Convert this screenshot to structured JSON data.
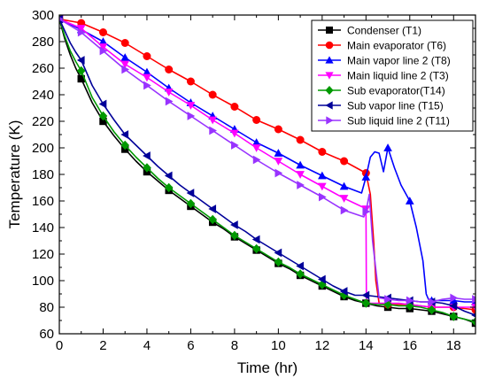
{
  "chart_data": {
    "type": "line",
    "xlabel": "Time (hr)",
    "ylabel": "Temperature (K)",
    "xlim": [
      0,
      19
    ],
    "ylim": [
      60,
      300
    ],
    "xticks": [
      0,
      2,
      4,
      6,
      8,
      10,
      12,
      14,
      16,
      18
    ],
    "yticks": [
      60,
      80,
      100,
      120,
      140,
      160,
      180,
      200,
      220,
      240,
      260,
      280,
      300
    ],
    "grid": false,
    "legend_position": "top-right",
    "series": [
      {
        "name": "Condenser (T1)",
        "color": "#000000",
        "marker": "square",
        "x": [
          0,
          0.25,
          0.5,
          0.75,
          1,
          1.5,
          2,
          2.5,
          3,
          3.5,
          4,
          4.5,
          5,
          5.5,
          6,
          6.5,
          7,
          7.5,
          8,
          8.5,
          9,
          9.5,
          10,
          10.5,
          11,
          11.5,
          12,
          12.5,
          13,
          13.5,
          14,
          14.5,
          15,
          15.5,
          16,
          16.5,
          17,
          17.5,
          18,
          18.5,
          19
        ],
        "y": [
          297,
          282,
          270,
          260,
          252,
          234,
          220,
          209,
          199,
          190,
          182,
          175,
          168,
          162,
          156,
          150,
          144,
          139,
          133,
          128,
          123,
          118,
          113,
          109,
          104,
          100,
          96,
          92,
          88,
          85,
          83,
          81,
          80,
          79,
          79,
          78,
          77,
          75,
          73,
          71,
          68
        ],
        "marker_x": [
          0,
          1,
          2,
          3,
          4,
          5,
          6,
          7,
          8,
          9,
          10,
          11,
          12,
          13,
          14,
          15,
          16,
          17,
          18,
          19
        ],
        "marker_y": [
          297,
          252,
          220,
          199,
          182,
          168,
          156,
          144,
          133,
          123,
          113,
          104,
          96,
          88,
          83,
          80,
          79,
          77,
          73,
          68
        ]
      },
      {
        "name": "Main evaporator (T6)",
        "color": "#ff0000",
        "marker": "circle",
        "x": [
          0,
          1,
          2,
          3,
          4,
          5,
          6,
          7,
          8,
          9,
          10,
          11,
          12,
          13,
          14,
          14.2,
          14.35,
          14.45,
          14.6,
          15,
          15.5,
          16,
          16.5,
          17,
          17.5,
          18,
          18.5,
          19
        ],
        "y": [
          297,
          294,
          287,
          279,
          269,
          259,
          250,
          240,
          231,
          221,
          214,
          206,
          197,
          190,
          181,
          165,
          130,
          100,
          83,
          82,
          82,
          82,
          81,
          80,
          80,
          80,
          79,
          78
        ],
        "marker_x": [
          0,
          1,
          2,
          3,
          4,
          5,
          6,
          7,
          8,
          9,
          10,
          11,
          12,
          13,
          14,
          15,
          16,
          17,
          18,
          19
        ],
        "marker_y": [
          297,
          294,
          287,
          279,
          269,
          259,
          250,
          240,
          231,
          221,
          214,
          206,
          197,
          190,
          181,
          82,
          82,
          80,
          80,
          78
        ]
      },
      {
        "name": "Main vapor line 2 (T8)",
        "color": "#0000ff",
        "marker": "triangle-up",
        "x": [
          0,
          1,
          2,
          3,
          4,
          5,
          6,
          7,
          8,
          9,
          10,
          11,
          12,
          13,
          13.8,
          14,
          14.2,
          14.4,
          14.6,
          14.8,
          15,
          15.3,
          15.6,
          16,
          16.3,
          16.6,
          16.75,
          16.85,
          17,
          17.5,
          18,
          18.5,
          19
        ],
        "y": [
          297,
          289,
          280,
          268,
          257,
          245,
          234,
          224,
          214,
          204,
          196,
          187,
          179,
          171,
          166,
          178,
          193,
          197,
          196,
          182,
          200,
          185,
          172,
          160,
          140,
          115,
          90,
          86,
          85,
          85,
          85,
          84,
          84
        ],
        "marker_x": [
          0,
          1,
          2,
          3,
          4,
          5,
          6,
          7,
          8,
          9,
          10,
          11,
          12,
          13,
          14,
          15,
          16,
          17,
          18,
          19
        ],
        "marker_y": [
          297,
          289,
          280,
          268,
          257,
          245,
          234,
          224,
          214,
          204,
          196,
          187,
          179,
          171,
          178,
          200,
          160,
          85,
          85,
          84
        ]
      },
      {
        "name": "Main liquid line 2 (T3)",
        "color": "#ff00ff",
        "marker": "triangle-down",
        "x": [
          0,
          1,
          2,
          3,
          4,
          5,
          6,
          7,
          8,
          9,
          10,
          11,
          12,
          13,
          13.9,
          14,
          14.02,
          14.2,
          14.5,
          15,
          15.5,
          16,
          16.5,
          17,
          17.5,
          18,
          18.5,
          19
        ],
        "y": [
          297,
          290,
          276,
          263,
          253,
          242,
          232,
          221,
          211,
          200,
          190,
          180,
          171,
          162,
          155,
          154,
          84,
          83,
          83,
          83,
          83,
          82,
          81,
          80,
          80,
          80,
          80,
          80
        ],
        "marker_x": [
          0,
          1,
          2,
          3,
          4,
          5,
          6,
          7,
          8,
          9,
          10,
          11,
          12,
          13,
          14,
          15,
          16,
          17,
          18,
          19
        ],
        "marker_y": [
          297,
          290,
          276,
          263,
          253,
          242,
          232,
          221,
          211,
          200,
          190,
          180,
          171,
          162,
          154,
          83,
          82,
          80,
          80,
          80
        ]
      },
      {
        "name": "Sub evaporator(T14)",
        "color": "#009900",
        "marker": "diamond",
        "x": [
          0,
          0.25,
          0.5,
          0.75,
          1,
          1.5,
          2,
          2.5,
          3,
          3.5,
          4,
          4.5,
          5,
          5.5,
          6,
          6.5,
          7,
          7.5,
          8,
          8.5,
          9,
          9.5,
          10,
          10.5,
          11,
          11.5,
          12,
          12.5,
          13,
          13.5,
          14,
          14.5,
          15,
          15.5,
          16,
          16.5,
          17,
          17.5,
          18,
          18.5,
          19
        ],
        "y": [
          297,
          284,
          273,
          265,
          258,
          238,
          224,
          212,
          202,
          193,
          185,
          177,
          170,
          164,
          158,
          152,
          146,
          140,
          134,
          129,
          124,
          119,
          114,
          110,
          105,
          101,
          97,
          93,
          89,
          86,
          83,
          82,
          82,
          81,
          81,
          80,
          78,
          76,
          73,
          71,
          69
        ],
        "marker_x": [
          0,
          1,
          2,
          3,
          4,
          5,
          6,
          7,
          8,
          9,
          10,
          11,
          12,
          13,
          14,
          15,
          16,
          17,
          18,
          19
        ],
        "marker_y": [
          297,
          258,
          224,
          202,
          185,
          170,
          158,
          146,
          134,
          124,
          114,
          105,
          97,
          89,
          83,
          82,
          81,
          78,
          73,
          69
        ]
      },
      {
        "name": "Sub vapor line (T15)",
        "color": "#000099",
        "marker": "triangle-left",
        "x": [
          0,
          0.25,
          0.5,
          0.75,
          1,
          1.5,
          2,
          2.5,
          3,
          3.5,
          4,
          4.5,
          5,
          5.5,
          6,
          6.5,
          7,
          7.5,
          8,
          8.5,
          9,
          9.5,
          10,
          10.5,
          11,
          11.5,
          12,
          12.5,
          13,
          13.5,
          14,
          14.5,
          15,
          15.5,
          16,
          16.5,
          17,
          17.5,
          18,
          18.5,
          19
        ],
        "y": [
          297,
          288,
          279,
          272,
          266,
          247,
          233,
          221,
          210,
          202,
          194,
          186,
          179,
          172,
          166,
          160,
          154,
          148,
          142,
          137,
          131,
          126,
          121,
          116,
          111,
          106,
          101,
          96,
          92,
          89,
          89,
          88,
          87,
          86,
          85,
          84,
          84,
          83,
          81,
          77,
          74
        ],
        "marker_x": [
          0,
          1,
          2,
          3,
          4,
          5,
          6,
          7,
          8,
          9,
          10,
          11,
          12,
          13,
          14,
          15,
          16,
          17,
          18,
          19
        ],
        "marker_y": [
          297,
          266,
          233,
          210,
          194,
          179,
          166,
          154,
          142,
          131,
          121,
          111,
          101,
          92,
          89,
          87,
          85,
          84,
          81,
          74
        ]
      },
      {
        "name": "Sub liquid line 2 (T11)",
        "color": "#9933ff",
        "marker": "triangle-right",
        "x": [
          0,
          1,
          2,
          3,
          4,
          5,
          6,
          7,
          8,
          9,
          10,
          11,
          12,
          13,
          13.9,
          14,
          14.15,
          14.3,
          14.6,
          15,
          15.5,
          16,
          16.5,
          17,
          17.5,
          18,
          18.5,
          19
        ],
        "y": [
          297,
          287,
          273,
          259,
          247,
          235,
          224,
          213,
          202,
          191,
          181,
          172,
          163,
          153,
          148,
          152,
          165,
          130,
          87,
          86,
          85,
          85,
          84,
          84,
          86,
          87,
          86,
          86
        ],
        "marker_x": [
          0,
          1,
          2,
          3,
          4,
          5,
          6,
          7,
          8,
          9,
          10,
          11,
          12,
          13,
          14,
          15,
          16,
          17,
          18,
          19
        ],
        "marker_y": [
          297,
          287,
          273,
          259,
          247,
          235,
          224,
          213,
          202,
          191,
          181,
          172,
          163,
          153,
          152,
          86,
          85,
          84,
          87,
          86
        ]
      }
    ]
  }
}
